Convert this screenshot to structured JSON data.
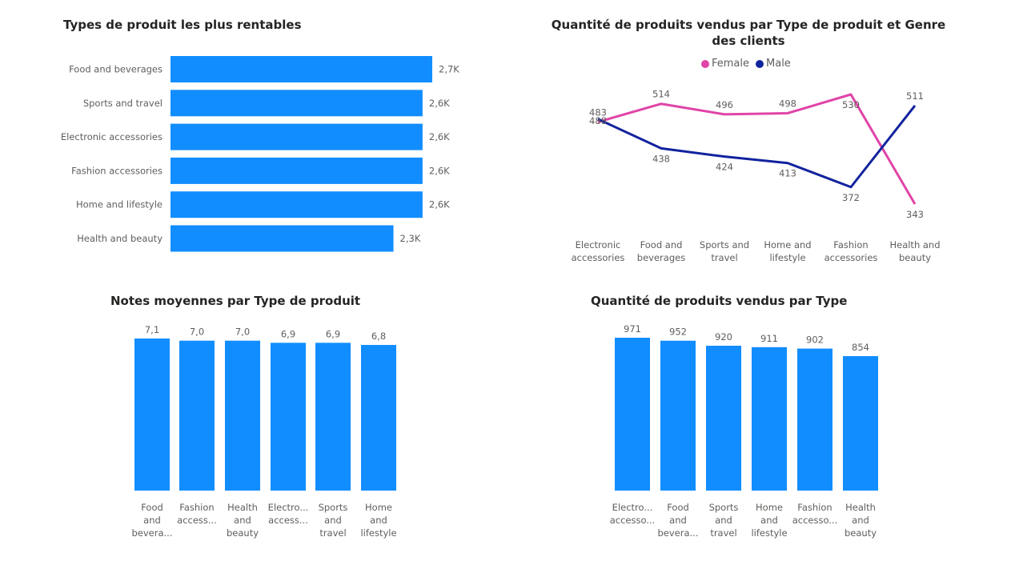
{
  "colors": {
    "bar": "#118dff",
    "female": "#e044a7",
    "male": "#12239e",
    "label": "#605e5c"
  },
  "chart_data": [
    {
      "type": "bar",
      "orientation": "horizontal",
      "title": "Types de produit les plus rentables",
      "categories": [
        "Food and beverages",
        "Sports and travel",
        "Electronic accessories",
        "Fashion accessories",
        "Home and lifestyle",
        "Health and beauty"
      ],
      "values": [
        2.7,
        2.6,
        2.6,
        2.6,
        2.6,
        2.3
      ],
      "data_labels": [
        "2,7K",
        "2,6K",
        "2,6K",
        "2,6K",
        "2,6K",
        "2,3K"
      ],
      "grid": false
    },
    {
      "type": "line",
      "title": "Quantité de produits vendus par Type de produit et Genre des clients",
      "legend_position": "top-center",
      "categories": [
        "Electronic accessories",
        "Food and beverages",
        "Sports and travel",
        "Home and lifestyle",
        "Fashion accessories",
        "Health and beauty"
      ],
      "series": [
        {
          "name": "Female",
          "values": [
            483,
            514,
            496,
            498,
            530,
            343
          ]
        },
        {
          "name": "Male",
          "values": [
            488,
            438,
            424,
            413,
            372,
            511
          ]
        }
      ],
      "grid": false
    },
    {
      "type": "bar",
      "orientation": "vertical",
      "title": "Notes moyennes par Type de produit",
      "categories": [
        "Food and beverages",
        "Fashion accessories",
        "Health and beauty",
        "Electronic accessories",
        "Sports and travel",
        "Home and lifestyle"
      ],
      "category_labels": [
        [
          "Food",
          "and",
          "bevera..."
        ],
        [
          "Fashion",
          "access..."
        ],
        [
          "Health",
          "and",
          "beauty"
        ],
        [
          "Electro...",
          "access..."
        ],
        [
          "Sports",
          "and",
          "travel"
        ],
        [
          "Home",
          "and",
          "lifestyle"
        ]
      ],
      "values": [
        7.1,
        7.0,
        7.0,
        6.9,
        6.9,
        6.8
      ],
      "data_labels": [
        "7,1",
        "7,0",
        "7,0",
        "6,9",
        "6,9",
        "6,8"
      ],
      "grid": false
    },
    {
      "type": "bar",
      "orientation": "vertical",
      "title": "Quantité de produits vendus par Type",
      "categories": [
        "Electronic accessories",
        "Food and beverages",
        "Sports and travel",
        "Home and lifestyle",
        "Fashion accessories",
        "Health and beauty"
      ],
      "category_labels": [
        [
          "Electro...",
          "accesso..."
        ],
        [
          "Food",
          "and",
          "bevera..."
        ],
        [
          "Sports",
          "and",
          "travel"
        ],
        [
          "Home",
          "and",
          "lifestyle"
        ],
        [
          "Fashion",
          "accesso..."
        ],
        [
          "Health",
          "and",
          "beauty"
        ]
      ],
      "values": [
        971,
        952,
        920,
        911,
        902,
        854
      ],
      "data_labels": [
        "971",
        "952",
        "920",
        "911",
        "902",
        "854"
      ],
      "grid": false
    }
  ]
}
